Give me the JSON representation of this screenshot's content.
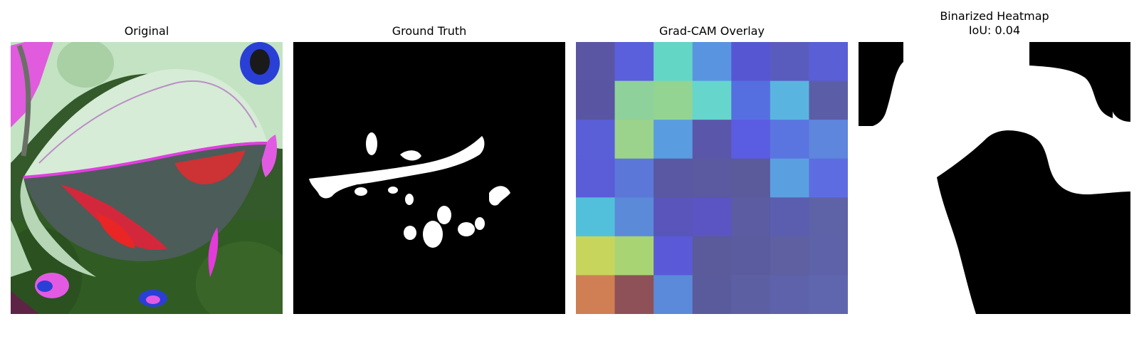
{
  "figure": {
    "panels": [
      {
        "title": "Original"
      },
      {
        "title": "Ground Truth"
      },
      {
        "title": "Grad-CAM Overlay"
      },
      {
        "title_lines": [
          "Binarized Heatmap",
          "IoU: 0.04"
        ]
      }
    ]
  },
  "gradcam": {
    "grid_size": [
      7,
      7
    ],
    "cells": [
      [
        "#5a56a4",
        "#5a5fdc",
        "#63d6c6",
        "#5994e0",
        "#5656d3",
        "#5a5cbd",
        "#5a5fd6"
      ],
      [
        "#5a55a2",
        "#8fd19b",
        "#93d493",
        "#66d6cc",
        "#566fe0",
        "#59b5e0",
        "#5b5ea7"
      ],
      [
        "#5a5fd8",
        "#9bd38d",
        "#599ce0",
        "#5a56a9",
        "#5a5ce2",
        "#5b75e0",
        "#5d86dc"
      ],
      [
        "#5a5dd7",
        "#5b78d8",
        "#5a58a2",
        "#5b599f",
        "#5b5a9b",
        "#5aa0e0",
        "#5d6de1"
      ],
      [
        "#52c0da",
        "#5a8ad8",
        "#5a55ba",
        "#5b54c3",
        "#5b5ca2",
        "#5b5dae",
        "#5e63a7"
      ],
      [
        "#c7d55d",
        "#a9d474",
        "#5a5ad8",
        "#5b5a9a",
        "#5b5c9f",
        "#5e60a2",
        "#5e62a8"
      ],
      [
        "#cf7f53",
        "#8e5158",
        "#5a8ad9",
        "#5a5b9c",
        "#5c60a3",
        "#5e62aa",
        "#6066ad"
      ]
    ]
  }
}
